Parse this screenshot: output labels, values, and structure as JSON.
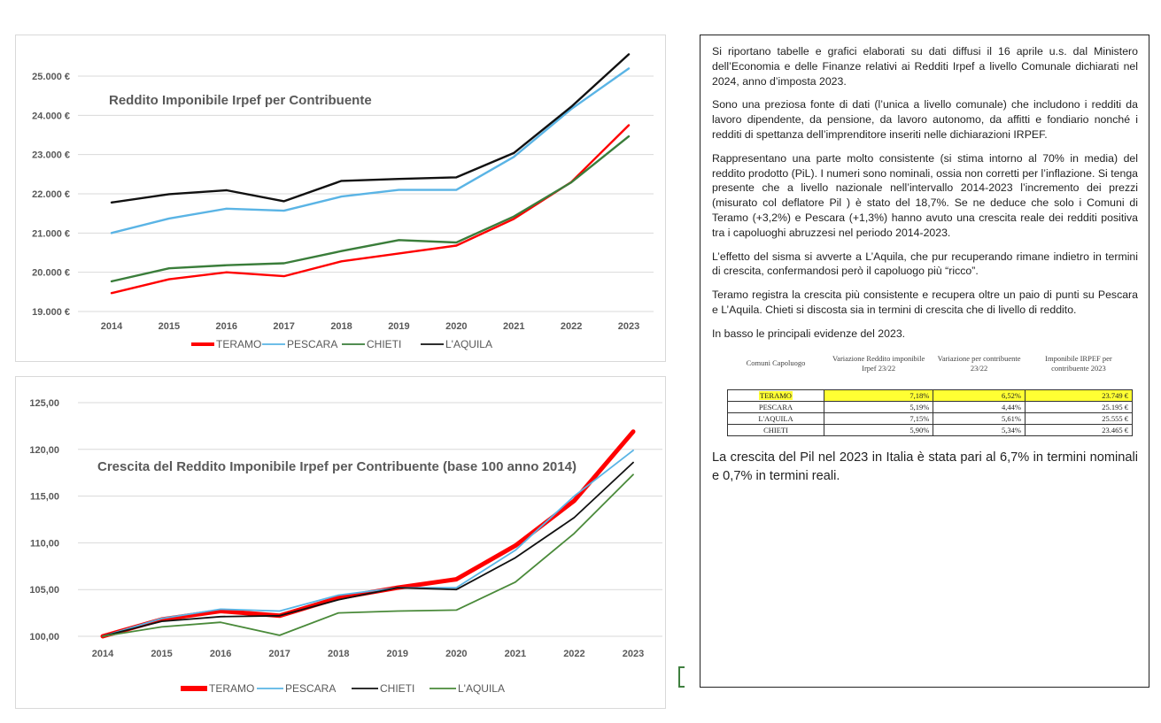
{
  "chart_data": [
    {
      "type": "line",
      "title": "Reddito Imponibile Irpef per Contribuente",
      "xlabel": "",
      "ylabel": "",
      "categories": [
        "2014",
        "2015",
        "2016",
        "2017",
        "2018",
        "2019",
        "2020",
        "2021",
        "2022",
        "2023"
      ],
      "ylim": [
        19000,
        25000
      ],
      "yticks": [
        "19.000 €",
        "20.000 €",
        "21.000 €",
        "22.000 €",
        "23.000 €",
        "24.000 €",
        "25.000 €"
      ],
      "legend_position": "bottom",
      "series": [
        {
          "name": "TERAMO",
          "color": "#ff0000",
          "values": [
            19470,
            19820,
            20000,
            19900,
            20280,
            20480,
            20680,
            21360,
            22300,
            23749
          ]
        },
        {
          "name": "PESCARA",
          "color": "#5ab4e5",
          "values": [
            21000,
            21370,
            21620,
            21570,
            21930,
            22100,
            22100,
            22940,
            24160,
            25195
          ]
        },
        {
          "name": "CHIETI",
          "color": "#3a7d3a",
          "values": [
            19770,
            20100,
            20180,
            20230,
            20540,
            20820,
            20760,
            21420,
            22290,
            23465
          ]
        },
        {
          "name": "L'AQUILA",
          "color": "#111111",
          "values": [
            21780,
            21990,
            22090,
            21810,
            22330,
            22380,
            22420,
            23040,
            24220,
            25555
          ]
        }
      ]
    },
    {
      "type": "line",
      "title": "Crescita del Reddito Imponibile Irpef per Contribuente (base 100 anno 2014)",
      "xlabel": "",
      "ylabel": "",
      "categories": [
        "2014",
        "2015",
        "2016",
        "2017",
        "2018",
        "2019",
        "2020",
        "2021",
        "2022",
        "2023"
      ],
      "ylim": [
        100,
        125
      ],
      "yticks": [
        "100,00",
        "105,00",
        "110,00",
        "115,00",
        "120,00",
        "125,00"
      ],
      "legend_position": "bottom",
      "series": [
        {
          "name": "TERAMO",
          "color": "#ff0000",
          "width": 5,
          "values": [
            100,
            101.8,
            102.7,
            102.2,
            104.1,
            105.2,
            106.1,
            109.7,
            114.5,
            121.9
          ]
        },
        {
          "name": "PESCARA",
          "color": "#5ab4e5",
          "width": 1.8,
          "values": [
            100,
            101.9,
            102.9,
            102.7,
            104.4,
            105.2,
            105.2,
            109.2,
            115.0,
            119.9
          ]
        },
        {
          "name": "CHIETI",
          "color": "#111111",
          "width": 1.8,
          "values": [
            100,
            101.6,
            102.1,
            102.2,
            103.9,
            105.2,
            105.0,
            108.4,
            112.7,
            118.6
          ]
        },
        {
          "name": "L'AQUILA",
          "color": "#4a8a3a",
          "width": 1.8,
          "values": [
            100,
            101.0,
            101.5,
            100.1,
            102.5,
            102.7,
            102.8,
            105.8,
            111.0,
            117.3
          ]
        }
      ]
    }
  ],
  "text_panel": {
    "p1": "Si riportano tabelle e grafici elaborati su dati diffusi il 16 aprile u.s. dal Ministero dell’Economia e delle Finanze relativi ai Redditi Irpef a livello Comunale dichiarati nel 2024, anno d’imposta 2023.",
    "p2": "Sono una preziosa fonte di dati (l’unica a livello comunale) che includono i redditi da lavoro dipendente, da pensione, da lavoro autonomo, da affitti e fondiario nonché i redditi di spettanza dell’imprenditore inseriti nelle dichiarazioni IRPEF.",
    "p3": "Rappresentano una parte molto consistente (si stima intorno al 70% in media) del reddito prodotto (PiL). I numeri sono nominali, ossia non corretti per l’inflazione. Si tenga presente che a livello nazionale nell’intervallo 2014-2023 l’incremento dei prezzi (misurato col deflatore Pil ) è stato del 18,7%. Se ne deduce che solo i Comuni di Teramo (+3,2%) e Pescara (+1,3%) hanno avuto una crescita reale dei redditi positiva tra i capoluoghi abruzzesi nel periodo 2014-2023.",
    "p4": "L’effetto del sisma si avverte a L’Aquila, che pur recuperando rimane indietro in termini di crescita, confermandosi però il capoluogo più “ricco”.",
    "p5": "Teramo registra la crescita più consistente e recupera oltre un paio di punti su Pescara e L’Aquila. Chieti si discosta sia in termini di crescita che di livello di reddito.",
    "p6": "In basso le principali evidenze del 2023.",
    "p7": "La crescita del Pil nel 2023 in Italia è stata pari al 6,7% in termini nominali e 0,7% in termini reali."
  },
  "summary_table": {
    "headers": [
      "Comuni Capoluogo",
      "Variazione Reddito imponibile Irpef 23/22",
      "Variazione per contribuente 23/22",
      "Imponibile IRPEF per contribuente 2023"
    ],
    "rows": [
      [
        "TERAMO",
        "7,18%",
        "6,52%",
        "23.749 €"
      ],
      [
        "PESCARA",
        "5,19%",
        "4,44%",
        "25.195 €"
      ],
      [
        "L'AQUILA",
        "7,15%",
        "5,61%",
        "25.555 €"
      ],
      [
        "CHIETI",
        "5,90%",
        "5,34%",
        "23.465 €"
      ]
    ]
  },
  "colors": {
    "highlight": "#ffff33"
  }
}
